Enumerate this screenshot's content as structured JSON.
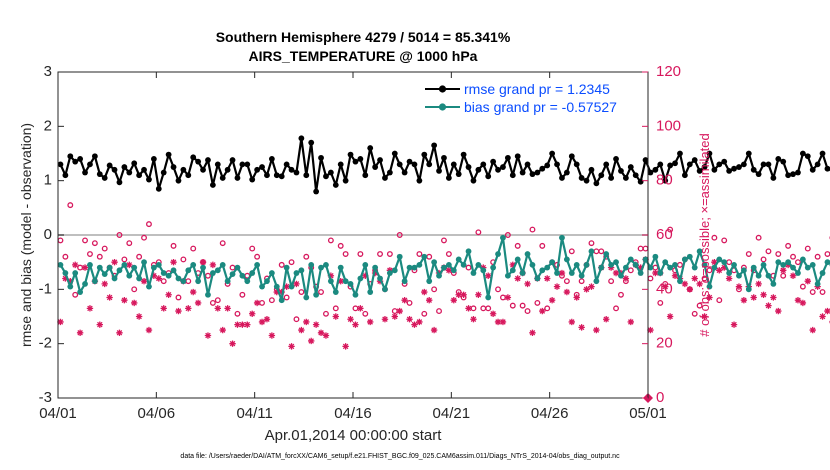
{
  "chart_data": {
    "type": "line",
    "title_line1": "Southern Hemisphere 4279 / 5014 = 85.341%",
    "title_line2": "AIRS_TEMPERATURE @ 1000 hPa",
    "ylabel": "rmse and bias (model - observation)",
    "ylabel_right": "# of obs: o=possible; ×=assimilated",
    "xlabel": "Apr.01,2014 00:00:00 start",
    "footnote": "data file: /Users/raeder/DAI/ATM_forcXX/CAM6_setup/f.e21.FHIST_BGC.f09_025.CAM6assim.011/Diags_NTrS_2014-04/obs_diag_output.nc",
    "x_range": [
      0,
      30
    ],
    "ylim": [
      -3,
      3
    ],
    "ylim_right": [
      0,
      120
    ],
    "x_ticks": [
      0,
      5,
      10,
      15,
      20,
      25,
      30
    ],
    "x_tick_labels": [
      "04/01",
      "04/06",
      "04/11",
      "04/16",
      "04/21",
      "04/26",
      "05/01"
    ],
    "y_ticks": [
      -3,
      -2,
      -1,
      0,
      1,
      2,
      3
    ],
    "y_tick_labels": [
      "-3",
      "-2",
      "-1",
      "0",
      "1",
      "2",
      "3"
    ],
    "y_ticks_right": [
      0,
      20,
      40,
      60,
      80,
      100,
      120
    ],
    "y_tick_labels_right": [
      "0",
      "20",
      "40",
      "60",
      "80",
      "100",
      "120"
    ],
    "zero_line": 0,
    "legend": {
      "placement": "top-right",
      "entries": [
        "rmse grand pr = 1.2345",
        "bias grand pr = -0.57527"
      ]
    },
    "colors": {
      "rmse": "#000000",
      "bias": "#1b8a80",
      "obs": "#d7185d",
      "zero_line": "#bfbfbf",
      "legend_text": "#0b4dff"
    },
    "time_step_days": 0.25,
    "series": [
      {
        "name": "rmse",
        "axis": "left",
        "values": [
          1.3,
          1.1,
          1.45,
          1.35,
          1.4,
          1.15,
          1.3,
          1.45,
          1.12,
          1.05,
          1.28,
          1.2,
          0.97,
          1.25,
          1.15,
          1.32,
          1.1,
          1.2,
          1.02,
          1.4,
          0.85,
          1.15,
          1.48,
          1.25,
          1.0,
          1.2,
          1.1,
          1.43,
          1.35,
          1.2,
          1.38,
          0.92,
          1.3,
          1.05,
          1.2,
          1.38,
          1.05,
          1.3,
          1.3,
          1.02,
          1.2,
          1.25,
          1.1,
          1.4,
          1.1,
          1.08,
          1.3,
          1.2,
          1.15,
          1.78,
          1.1,
          1.7,
          0.8,
          1.42,
          1.08,
          1.15,
          0.92,
          1.3,
          1.0,
          1.48,
          1.35,
          1.4,
          1.1,
          1.6,
          1.25,
          1.38,
          1.05,
          1.15,
          1.5,
          1.3,
          1.15,
          1.35,
          1.3,
          1.0,
          1.48,
          1.3,
          1.65,
          1.18,
          1.42,
          1.05,
          1.3,
          1.12,
          1.48,
          1.25,
          1.0,
          1.2,
          1.3,
          1.08,
          1.35,
          1.2,
          1.25,
          1.42,
          1.1,
          1.45,
          1.15,
          1.3,
          1.12,
          1.15,
          1.22,
          1.28,
          1.5,
          1.3,
          1.05,
          1.15,
          1.45,
          1.3,
          1.05,
          1.0,
          1.2,
          0.95,
          1.1,
          1.3,
          1.05,
          1.4,
          1.18,
          1.05,
          1.25,
          1.1,
          0.98,
          1.38,
          1.15,
          1.2,
          1.3,
          1.0,
          1.28,
          1.32,
          1.5,
          1.1,
          1.3,
          1.38,
          1.18,
          1.25,
          1.5,
          1.2,
          1.3,
          1.35,
          1.18,
          1.22,
          1.25,
          1.3,
          1.5,
          1.2,
          1.12,
          1.3,
          1.3,
          1.05,
          1.4,
          1.35,
          1.1,
          1.12,
          1.15,
          1.5,
          1.45,
          1.2,
          1.3,
          1.5,
          1.22,
          1.2,
          1.08,
          1.25,
          1.3,
          1.12,
          0.9,
          1.52,
          1.2,
          1.38,
          1.08,
          1.32,
          1.3,
          1.32,
          1.2,
          1.42,
          1.3,
          1.12,
          1.08,
          1.4,
          1.3,
          0.98,
          1.1,
          1.28,
          1.05,
          1.22,
          1.15,
          1.4,
          1.2,
          1.15,
          1.1,
          0.95,
          1.3,
          1.15,
          0.9,
          1.1,
          1.15,
          1.3,
          1.25,
          1.12,
          1.15,
          1.0,
          1.1,
          1.32,
          1.05,
          1.15,
          1.2,
          1.25,
          1.1,
          1.15,
          1.25,
          1.25,
          1.2,
          1.1,
          1.28,
          1.3,
          1.1,
          1.0,
          1.35,
          1.1,
          1.28,
          0.92,
          1.1,
          1.92,
          1.25
        ]
      },
      {
        "name": "bias",
        "axis": "left",
        "values": [
          -0.55,
          -0.7,
          -0.95,
          -0.7,
          -1.05,
          -0.9,
          -0.55,
          -0.85,
          -0.6,
          -0.72,
          -0.6,
          -0.8,
          -0.65,
          -0.55,
          -0.75,
          -0.6,
          -0.8,
          -0.5,
          -0.95,
          -0.6,
          -0.55,
          -0.7,
          -0.75,
          -0.65,
          -0.8,
          -0.85,
          -0.65,
          -0.55,
          -0.85,
          -0.6,
          -1.1,
          -0.7,
          -0.65,
          -0.55,
          -0.85,
          -0.72,
          -0.6,
          -0.75,
          -0.85,
          -0.7,
          -0.55,
          -0.95,
          -0.85,
          -0.7,
          -0.95,
          -1.2,
          -0.6,
          -0.95,
          -0.7,
          -0.65,
          -1.15,
          -0.55,
          -1.1,
          -0.6,
          -0.55,
          -0.85,
          -1.05,
          -0.6,
          -0.85,
          -0.9,
          -1.1,
          -0.8,
          -0.55,
          -1.05,
          -0.6,
          -0.8,
          -1.0,
          -0.7,
          -0.65,
          -0.4,
          -0.85,
          -0.6,
          -0.6,
          -0.55,
          -0.4,
          -0.85,
          -0.5,
          -0.75,
          -0.6,
          -0.55,
          -0.65,
          -0.45,
          -0.55,
          -0.3,
          -0.7,
          -0.55,
          -0.65,
          -1.15,
          -0.6,
          -0.35,
          -0.05,
          -0.75,
          -0.65,
          -0.45,
          -0.7,
          -0.35,
          -0.55,
          -0.8,
          -0.65,
          -0.6,
          -0.5,
          -0.7,
          -0.05,
          -0.45,
          -0.7,
          -0.55,
          -0.75,
          -0.55,
          -0.3,
          -0.85,
          -0.6,
          -0.35,
          -0.55,
          -0.5,
          -0.75,
          -0.6,
          -0.45,
          -0.55,
          -0.7,
          -0.45,
          -0.6,
          -0.4,
          -0.7,
          -0.5,
          -0.6,
          -0.55,
          -0.85,
          -0.45,
          -0.4,
          -0.6,
          -0.3,
          -0.55,
          -0.95,
          -0.6,
          -0.45,
          -0.5,
          -0.7,
          -0.55,
          -0.75,
          -0.65,
          -1.0,
          -0.6,
          -0.75,
          -0.55,
          -0.75,
          -0.9,
          -0.5,
          -0.55,
          -0.5,
          -0.6,
          -0.7,
          -0.45,
          -0.6,
          -0.55,
          -0.9,
          -0.7,
          -0.5,
          -0.55,
          -0.75,
          -0.85,
          -0.6,
          -0.4,
          -0.75,
          -0.95,
          -0.55,
          -0.6,
          -0.5,
          -0.85,
          -0.65,
          -0.55,
          -0.55,
          -0.6,
          -0.7,
          -0.55,
          -0.95,
          -0.5,
          -0.65,
          -0.3,
          -0.6,
          -0.45,
          -0.65,
          -0.7,
          -0.55,
          -0.65,
          -0.8,
          -0.55,
          -0.3,
          -0.65,
          -0.5,
          -0.7,
          -0.55,
          -0.8,
          -0.65,
          -0.9,
          -0.55,
          -0.65,
          -0.5,
          -0.7,
          -0.4,
          -0.55,
          -0.7,
          -0.6,
          -0.55,
          -0.05,
          -0.75,
          -0.3,
          -0.55,
          -0.4,
          -0.6,
          -0.45,
          -0.55,
          -0.75,
          -0.6,
          -0.9,
          -0.65,
          -0.75,
          -0.75,
          -0.05,
          -1.05,
          -0.5
        ]
      },
      {
        "name": "obs possible",
        "axis": "right",
        "marker": "o",
        "values": [
          58,
          52,
          71,
          38,
          48,
          58,
          53,
          57,
          52,
          55,
          48,
          45,
          60,
          51,
          57,
          40,
          52,
          59,
          64,
          49,
          50,
          43,
          46,
          56,
          37,
          51,
          43,
          55,
          46,
          50,
          45,
          35,
          36,
          57,
          42,
          48,
          31,
          38,
          45,
          55,
          52,
          35,
          44,
          36,
          40,
          49,
          37,
          50,
          29,
          39,
          52,
          48,
          41,
          39,
          31,
          58,
          33,
          56,
          53,
          41,
          33,
          53,
          31,
          42,
          47,
          53,
          40,
          53,
          32,
          60,
          42,
          35,
          47,
          53,
          31,
          52,
          40,
          32,
          58,
          53,
          46,
          39,
          37,
          48,
          33,
          61,
          33,
          33,
          50,
          40,
          37,
          60,
          34,
          56,
          34,
          32,
          62,
          35,
          56,
          33,
          50,
          49,
          45,
          43,
          54,
          38,
          43,
          49,
          57,
          54,
          54,
          52,
          43,
          33,
          38,
          43,
          47,
          50,
          55,
          55,
          44,
          48,
          35,
          42,
          62,
          47,
          49,
          51,
          40,
          31,
          34,
          44,
          47,
          59,
          36,
          58,
          50,
          47,
          40,
          48,
          53,
          47,
          59,
          51,
          54,
          45,
          53,
          45,
          56,
          52,
          50,
          41,
          55,
          39,
          52,
          39,
          53,
          59,
          37,
          34,
          47,
          48,
          60,
          56,
          51,
          57,
          47,
          44,
          33,
          46,
          56,
          48,
          57,
          56,
          53,
          47,
          47,
          35,
          49,
          51,
          51,
          48,
          59,
          54,
          53,
          51,
          52,
          43,
          51,
          47,
          52,
          57,
          46,
          53,
          53,
          46,
          59,
          44,
          53,
          49,
          36,
          56,
          54,
          42,
          49,
          43,
          34,
          50,
          47,
          45,
          42,
          53,
          41,
          37,
          35,
          31,
          39,
          36,
          47,
          55,
          43,
          37,
          47,
          43,
          33,
          33
        ]
      },
      {
        "name": "obs assimilated",
        "axis": "right",
        "marker": "*",
        "values": [
          28,
          44,
          43,
          49,
          24,
          48,
          33,
          43,
          27,
          42,
          37,
          50,
          24,
          36,
          49,
          35,
          30,
          43,
          25,
          45,
          44,
          33,
          38,
          50,
          32,
          43,
          33,
          39,
          35,
          50,
          23,
          49,
          33,
          25,
          33,
          20,
          27,
          27,
          27,
          31,
          35,
          28,
          29,
          23,
          39,
          39,
          41,
          19,
          42,
          25,
          28,
          21,
          27,
          24,
          23,
          45,
          30,
          43,
          19,
          29,
          27,
          33,
          45,
          28,
          46,
          43,
          29,
          47,
          30,
          32,
          36,
          29,
          27,
          28,
          39,
          36,
          25,
          46,
          48,
          47,
          36,
          38,
          38,
          33,
          29,
          38,
          48,
          45,
          31,
          28,
          28,
          37,
          49,
          44,
          46,
          42,
          24,
          44,
          32,
          44,
          36,
          41,
          46,
          39,
          28,
          37,
          26,
          40,
          41,
          25,
          48,
          29,
          48,
          46,
          46,
          44,
          28,
          49,
          48,
          51,
          25,
          46,
          46,
          41,
          30,
          45,
          44,
          42,
          40,
          44,
          42,
          30,
          37,
          50,
          47,
          48,
          44,
          27,
          41,
          36,
          41,
          37,
          42,
          38,
          34,
          37,
          32,
          47,
          49,
          45,
          36,
          35,
          43,
          25,
          41,
          30,
          32,
          28,
          37,
          51,
          50,
          35,
          35,
          27,
          46,
          37,
          45,
          24,
          44,
          38,
          42,
          45,
          45,
          44,
          44,
          46,
          29,
          46,
          46,
          30,
          38,
          45,
          34,
          35,
          42,
          46,
          51,
          26,
          44,
          41,
          36,
          48,
          38,
          40,
          46,
          43,
          41,
          43,
          44,
          39,
          37,
          25,
          38,
          47,
          43,
          41,
          23,
          47,
          38,
          44,
          32,
          30,
          30,
          46,
          48,
          32,
          33,
          43,
          27,
          36,
          46,
          29,
          33,
          42,
          40,
          37
        ]
      }
    ]
  }
}
